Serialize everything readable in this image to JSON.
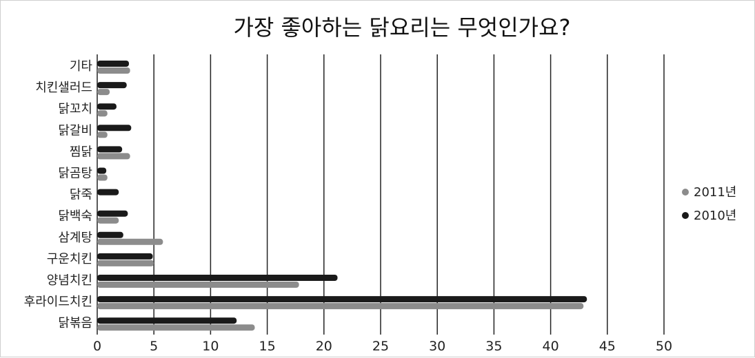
{
  "chart_data": {
    "type": "bar",
    "orientation": "horizontal",
    "title": "가장 좋아하는 닭요리는 무엇인가요?",
    "xlabel": "",
    "ylabel": "",
    "categories": [
      "기타",
      "치킨샐러드",
      "닭꼬치",
      "닭갈비",
      "찜닭",
      "닭곰탕",
      "닭죽",
      "닭백숙",
      "삼계탕",
      "구운치킨",
      "양념치킨",
      "후라이드치킨",
      "닭볶음"
    ],
    "series": [
      {
        "name": "2010년",
        "color": "#1a1a1a",
        "values": [
          2.8,
          2.6,
          1.7,
          3.0,
          2.2,
          0.8,
          1.9,
          2.7,
          2.3,
          4.9,
          21.2,
          43.2,
          12.3
        ]
      },
      {
        "name": "2011년",
        "color": "#8c8c8c",
        "values": [
          2.9,
          1.1,
          0.9,
          0.9,
          2.9,
          0.9,
          0.0,
          1.9,
          5.8,
          5.0,
          17.8,
          42.9,
          13.9
        ]
      }
    ],
    "xlim": [
      0,
      50
    ],
    "xticks": [
      0,
      5,
      10,
      15,
      20,
      25,
      30,
      35,
      40,
      45,
      50
    ],
    "grid": true,
    "legend_position": "right"
  }
}
